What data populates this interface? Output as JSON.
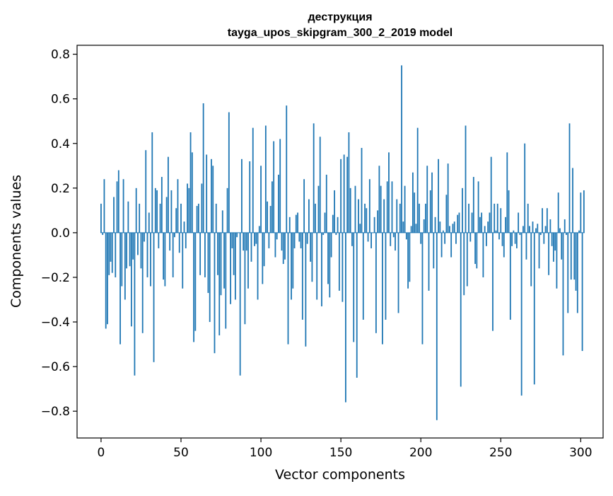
{
  "chart_data": {
    "type": "bar",
    "title": "деструкция",
    "subtitle": "tayga_upos_skipgram_300_2_2019 model",
    "xlabel": "Vector components",
    "ylabel": "Components values",
    "xlim": [
      -15,
      314
    ],
    "ylim": [
      -0.92,
      0.84
    ],
    "xticks": [
      0,
      50,
      100,
      150,
      200,
      250,
      300
    ],
    "xtick_labels": [
      "0",
      "50",
      "100",
      "150",
      "200",
      "250",
      "300"
    ],
    "yticks": [
      -0.8,
      -0.6,
      -0.4,
      -0.2,
      0.0,
      0.2,
      0.4,
      0.6,
      0.8
    ],
    "ytick_labels": [
      "−0.8",
      "−0.6",
      "−0.4",
      "−0.2",
      "0.0",
      "0.2",
      "0.4",
      "0.6",
      "0.8"
    ],
    "grid": false,
    "bar_color": "#1f77b4",
    "values": [
      0.13,
      -0.01,
      0.24,
      -0.43,
      -0.41,
      -0.19,
      -0.13,
      -0.18,
      0.16,
      -0.2,
      0.23,
      0.28,
      -0.5,
      -0.24,
      0.24,
      -0.3,
      -0.16,
      0.14,
      -0.15,
      -0.42,
      -0.12,
      -0.64,
      0.2,
      -0.1,
      0.13,
      -0.16,
      -0.45,
      -0.04,
      0.37,
      -0.2,
      0.09,
      -0.24,
      0.45,
      -0.58,
      0.2,
      0.19,
      -0.07,
      0.13,
      0.25,
      -0.21,
      -0.24,
      0.16,
      0.34,
      -0.08,
      0.19,
      -0.2,
      -0.02,
      0.11,
      0.24,
      -0.09,
      0.13,
      -0.25,
      0.05,
      -0.07,
      0.22,
      0.2,
      0.45,
      0.36,
      -0.49,
      -0.44,
      0.12,
      0.13,
      -0.19,
      0.22,
      0.58,
      -0.2,
      0.35,
      -0.27,
      -0.4,
      0.33,
      0.3,
      -0.54,
      0.13,
      -0.19,
      -0.46,
      -0.28,
      0.1,
      -0.25,
      -0.43,
      0.2,
      0.54,
      -0.32,
      -0.07,
      -0.19,
      -0.3,
      -0.02,
      0.0,
      -0.64,
      0.33,
      -0.08,
      -0.41,
      -0.08,
      -0.25,
      0.32,
      -0.13,
      0.47,
      -0.06,
      -0.05,
      -0.3,
      0.03,
      0.3,
      -0.23,
      -0.15,
      0.48,
      0.14,
      -0.07,
      0.12,
      0.23,
      0.41,
      -0.11,
      -0.03,
      0.26,
      0.42,
      -0.08,
      -0.14,
      -0.12,
      0.57,
      -0.5,
      0.07,
      -0.3,
      -0.25,
      -0.07,
      0.08,
      0.09,
      -0.04,
      -0.07,
      -0.39,
      0.24,
      -0.51,
      -0.05,
      0.15,
      -0.13,
      -0.22,
      0.49,
      0.13,
      -0.3,
      0.21,
      0.43,
      -0.33,
      -0.01,
      0.09,
      0.26,
      -0.23,
      -0.29,
      -0.11,
      0.08,
      0.19,
      -0.01,
      0.07,
      -0.26,
      0.33,
      -0.31,
      0.35,
      -0.76,
      0.34,
      0.45,
      0.2,
      -0.06,
      -0.49,
      0.21,
      -0.65,
      0.15,
      0.04,
      0.38,
      -0.39,
      0.13,
      0.11,
      -0.04,
      0.24,
      -0.07,
      0.0,
      0.07,
      -0.45,
      0.1,
      0.3,
      0.21,
      -0.5,
      0.15,
      -0.39,
      0.23,
      0.36,
      -0.06,
      0.23,
      -0.02,
      -0.08,
      0.15,
      -0.36,
      0.13,
      0.75,
      0.05,
      0.21,
      -0.03,
      -0.25,
      -0.22,
      0.03,
      0.27,
      0.18,
      0.04,
      0.47,
      0.13,
      -0.05,
      -0.5,
      0.06,
      0.13,
      0.3,
      -0.26,
      0.19,
      0.27,
      -0.16,
      0.07,
      -0.84,
      0.33,
      0.05,
      -0.11,
      0.01,
      -0.05,
      0.17,
      0.31,
      0.03,
      -0.11,
      0.04,
      0.05,
      -0.05,
      0.08,
      0.09,
      -0.69,
      0.2,
      -0.28,
      0.48,
      -0.24,
      0.13,
      -0.04,
      0.09,
      0.25,
      -0.14,
      -0.16,
      0.23,
      0.07,
      0.09,
      -0.2,
      0.03,
      -0.06,
      0.05,
      0.09,
      0.34,
      -0.44,
      0.13,
      0.01,
      0.13,
      -0.03,
      0.11,
      -0.06,
      -0.11,
      0.07,
      0.36,
      0.19,
      -0.39,
      -0.06,
      0.01,
      -0.05,
      -0.07,
      0.09,
      -0.01,
      -0.73,
      0.03,
      0.4,
      -0.12,
      0.13,
      0.03,
      -0.24,
      0.05,
      -0.68,
      0.02,
      0.04,
      -0.16,
      -0.01,
      0.11,
      -0.05,
      0.03,
      0.11,
      -0.19,
      0.06,
      -0.06,
      -0.13,
      -0.08,
      -0.25,
      0.18,
      0.02,
      -0.12,
      -0.55,
      0.06,
      -0.01,
      -0.36,
      0.49,
      -0.21,
      0.29,
      -0.21,
      -0.26,
      -0.36,
      0.01,
      0.18,
      -0.53,
      0.19
    ]
  }
}
